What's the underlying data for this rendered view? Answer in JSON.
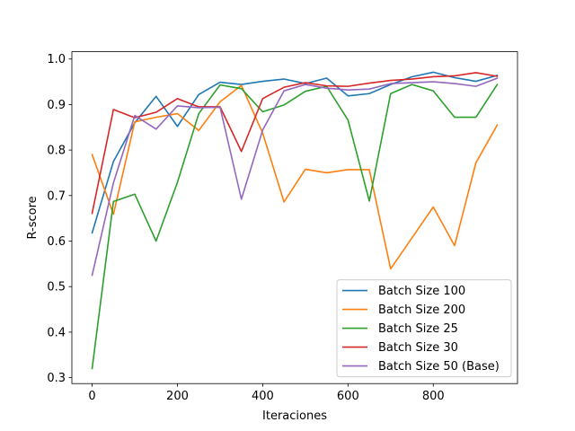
{
  "chart_data": {
    "type": "line",
    "title": "",
    "xlabel": "Iteraciones",
    "ylabel": "R-score",
    "xlim": [
      -47.5,
      997.5
    ],
    "ylim": [
      0.287,
      1.016
    ],
    "xticks": [
      0,
      200,
      400,
      600,
      800
    ],
    "yticks": [
      0.3,
      0.4,
      0.5,
      0.6,
      0.7,
      0.8,
      0.9,
      1.0
    ],
    "ytick_labels": [
      "0.3",
      "0.4",
      "0.5",
      "0.6",
      "0.7",
      "0.8",
      "0.9",
      "1.0"
    ],
    "grid": false,
    "legend_position": "lower-right",
    "x": [
      0,
      50,
      100,
      150,
      200,
      250,
      300,
      350,
      400,
      450,
      500,
      550,
      600,
      650,
      700,
      750,
      800,
      850,
      900,
      950
    ],
    "series": [
      {
        "name": "Batch Size 100",
        "color": "#1f77b4",
        "values": [
          0.618,
          0.775,
          0.86,
          0.918,
          0.852,
          0.922,
          0.949,
          0.944,
          0.951,
          0.956,
          0.946,
          0.958,
          0.919,
          0.924,
          0.944,
          0.961,
          0.971,
          0.959,
          0.951,
          0.964
        ]
      },
      {
        "name": "Batch Size 200",
        "color": "#ff7f0e",
        "values": [
          0.79,
          0.659,
          0.862,
          0.872,
          0.88,
          0.843,
          0.906,
          0.942,
          0.837,
          0.686,
          0.758,
          0.75,
          0.757,
          0.757,
          0.539,
          0.607,
          0.675,
          0.59,
          0.772,
          0.855
        ]
      },
      {
        "name": "Batch Size 25",
        "color": "#2ca02c",
        "values": [
          0.32,
          0.687,
          0.703,
          0.6,
          0.729,
          0.88,
          0.943,
          0.935,
          0.884,
          0.899,
          0.929,
          0.94,
          0.866,
          0.688,
          0.924,
          0.944,
          0.93,
          0.872,
          0.872,
          0.944
        ]
      },
      {
        "name": "Batch Size 30",
        "color": "#d62728",
        "values": [
          0.661,
          0.889,
          0.871,
          0.883,
          0.913,
          0.895,
          0.895,
          0.797,
          0.913,
          0.938,
          0.948,
          0.941,
          0.94,
          0.947,
          0.953,
          0.956,
          0.961,
          0.963,
          0.97,
          0.962
        ]
      },
      {
        "name": "Batch Size 50 (Base)",
        "color": "#9467bd",
        "values": [
          0.525,
          0.728,
          0.876,
          0.846,
          0.897,
          0.893,
          0.894,
          0.692,
          0.844,
          0.93,
          0.944,
          0.936,
          0.932,
          0.934,
          0.946,
          0.948,
          0.95,
          0.946,
          0.94,
          0.958
        ]
      }
    ]
  }
}
